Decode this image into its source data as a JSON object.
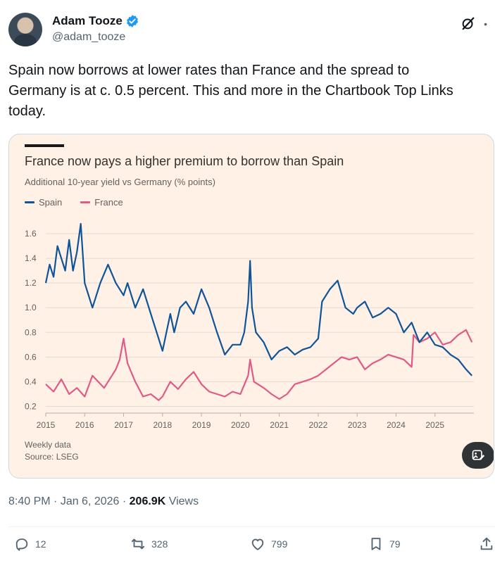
{
  "author": {
    "name": "Adam Tooze",
    "handle": "@adam_tooze"
  },
  "tweet": {
    "text": "Spain now borrows at lower rates than France and the spread to\nGermany is at c. 0.5 percent. This and more in the Chartbook Top Links\ntoday."
  },
  "meta": {
    "time": "8:40 PM",
    "date": "Jan 6, 2026",
    "views_count": "206.9K",
    "views_label": "Views",
    "sep": " · "
  },
  "actions": {
    "replies": "12",
    "reposts": "328",
    "likes": "799",
    "bookmarks": "79"
  },
  "icons": [
    "verified-badge-icon",
    "grok-icon",
    "more-icon",
    "reply-icon",
    "repost-icon",
    "like-icon",
    "bookmark-icon",
    "share-icon",
    "image-edit-icon"
  ],
  "colors": {
    "verified": "#1d9bf0",
    "card_bg": "#fff1e5",
    "spain": "#0f5499",
    "france": "#e05a86"
  },
  "chart_data": {
    "type": "line",
    "title": "France now pays a higher premium to borrow than Spain",
    "subtitle": "Additional 10-year yield vs Germany (% points)",
    "ylabel": "",
    "xlabel": "",
    "ylim": [
      0.18,
      1.72
    ],
    "xlim": [
      2015.0,
      2026.0
    ],
    "yticks": [
      "0.2",
      "0.4",
      "0.6",
      "0.8",
      "1.0",
      "1.2",
      "1.4",
      "1.6"
    ],
    "ytick_values": [
      0.2,
      0.4,
      0.6,
      0.8,
      1.0,
      1.2,
      1.4,
      1.6
    ],
    "xticks": [
      "2015",
      "2016",
      "2017",
      "2018",
      "2019",
      "2020",
      "2021",
      "2022",
      "2023",
      "2024",
      "2025"
    ],
    "xtick_values": [
      2015,
      2016,
      2017,
      2018,
      2019,
      2020,
      2021,
      2022,
      2023,
      2024,
      2025
    ],
    "footnotes": [
      "Weekly data",
      "Source: LSEG"
    ],
    "series": [
      {
        "name": "Spain",
        "x": [
          2015.0,
          2015.1,
          2015.2,
          2015.3,
          2015.4,
          2015.5,
          2015.6,
          2015.7,
          2015.8,
          2015.9,
          2016.0,
          2016.2,
          2016.4,
          2016.6,
          2016.8,
          2017.0,
          2017.1,
          2017.3,
          2017.5,
          2017.7,
          2017.9,
          2018.0,
          2018.2,
          2018.3,
          2018.45,
          2018.6,
          2018.8,
          2019.0,
          2019.2,
          2019.4,
          2019.6,
          2019.8,
          2020.0,
          2020.1,
          2020.2,
          2020.25,
          2020.3,
          2020.4,
          2020.6,
          2020.8,
          2021.0,
          2021.2,
          2021.4,
          2021.6,
          2021.8,
          2022.0,
          2022.1,
          2022.3,
          2022.5,
          2022.7,
          2022.9,
          2023.0,
          2023.2,
          2023.4,
          2023.6,
          2023.8,
          2024.0,
          2024.2,
          2024.4,
          2024.6,
          2024.8,
          2025.0,
          2025.2,
          2025.4,
          2025.6,
          2025.8,
          2025.95
        ],
        "y": [
          1.2,
          1.35,
          1.25,
          1.5,
          1.4,
          1.3,
          1.55,
          1.3,
          1.45,
          1.68,
          1.2,
          1.0,
          1.2,
          1.35,
          1.2,
          1.1,
          1.2,
          1.0,
          1.15,
          0.95,
          0.75,
          0.65,
          0.95,
          0.8,
          1.0,
          1.05,
          0.95,
          1.15,
          1.0,
          0.8,
          0.62,
          0.7,
          0.7,
          0.8,
          1.05,
          1.38,
          1.0,
          0.8,
          0.72,
          0.58,
          0.65,
          0.68,
          0.62,
          0.66,
          0.68,
          0.75,
          1.05,
          1.15,
          1.22,
          1.0,
          0.95,
          1.0,
          1.05,
          0.92,
          0.95,
          1.0,
          0.95,
          0.8,
          0.88,
          0.72,
          0.8,
          0.7,
          0.68,
          0.62,
          0.58,
          0.5,
          0.45
        ]
      },
      {
        "name": "France",
        "x": [
          2015.0,
          2015.2,
          2015.4,
          2015.6,
          2015.8,
          2016.0,
          2016.2,
          2016.5,
          2016.8,
          2016.9,
          2017.0,
          2017.1,
          2017.3,
          2017.5,
          2017.7,
          2017.9,
          2018.0,
          2018.2,
          2018.4,
          2018.6,
          2018.8,
          2019.0,
          2019.2,
          2019.4,
          2019.6,
          2019.8,
          2020.0,
          2020.2,
          2020.25,
          2020.35,
          2020.6,
          2020.8,
          2021.0,
          2021.2,
          2021.4,
          2021.6,
          2021.8,
          2022.0,
          2022.2,
          2022.4,
          2022.6,
          2022.8,
          2023.0,
          2023.2,
          2023.4,
          2023.6,
          2023.8,
          2024.0,
          2024.2,
          2024.4,
          2024.45,
          2024.6,
          2024.8,
          2025.0,
          2025.2,
          2025.4,
          2025.6,
          2025.8,
          2025.95
        ],
        "y": [
          0.38,
          0.32,
          0.42,
          0.3,
          0.35,
          0.28,
          0.45,
          0.35,
          0.5,
          0.58,
          0.75,
          0.55,
          0.4,
          0.28,
          0.3,
          0.25,
          0.28,
          0.4,
          0.34,
          0.42,
          0.48,
          0.38,
          0.32,
          0.3,
          0.28,
          0.32,
          0.3,
          0.45,
          0.58,
          0.4,
          0.35,
          0.3,
          0.26,
          0.3,
          0.38,
          0.4,
          0.42,
          0.45,
          0.5,
          0.55,
          0.6,
          0.58,
          0.6,
          0.5,
          0.55,
          0.58,
          0.62,
          0.6,
          0.58,
          0.52,
          0.78,
          0.72,
          0.75,
          0.8,
          0.7,
          0.72,
          0.78,
          0.82,
          0.72
        ]
      }
    ]
  }
}
